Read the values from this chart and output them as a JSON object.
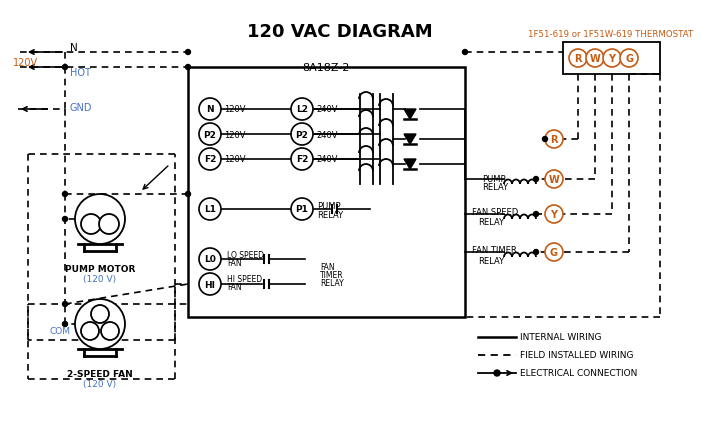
{
  "title": "120 VAC DIAGRAM",
  "title_fontsize": 13,
  "background_color": "#ffffff",
  "text_color_blue": "#4472C4",
  "text_color_orange": "#C55A11",
  "text_color_black": "#000000",
  "box_label": "8A18Z-2",
  "thermostat_label": "1F51-619 or 1F51W-619 THERMOSTAT"
}
